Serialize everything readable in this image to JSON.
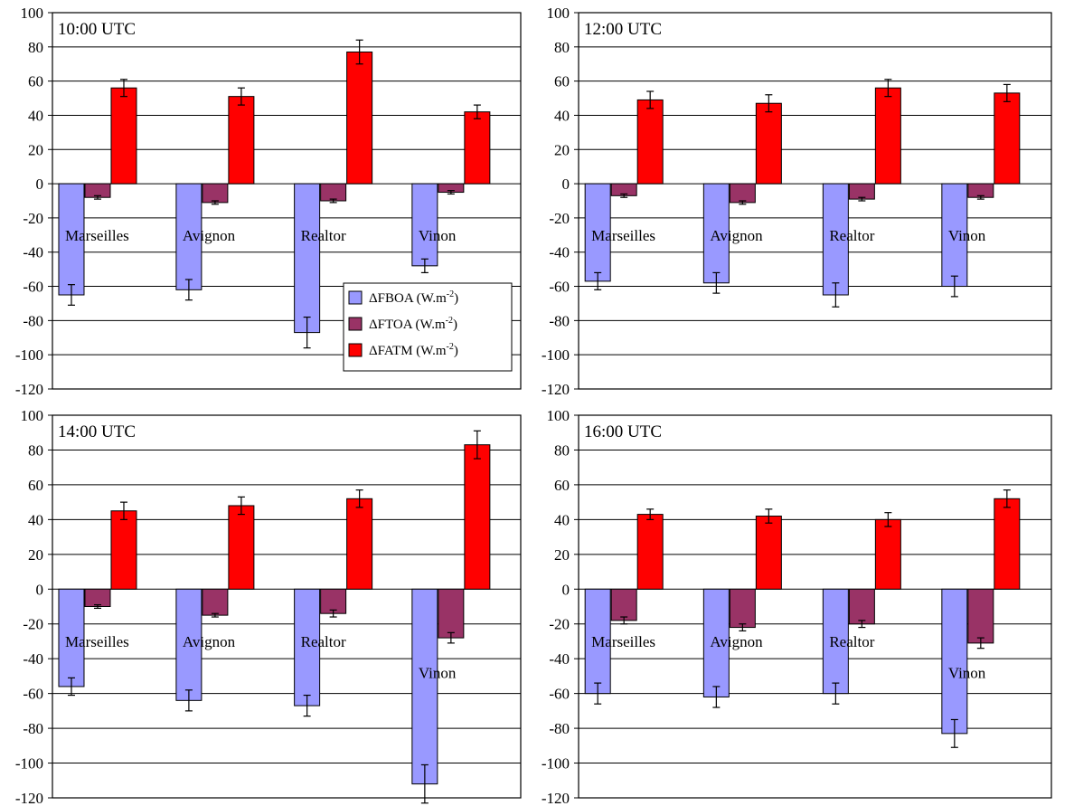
{
  "figure": {
    "legend": [
      {
        "symbol": "ΔFBOA",
        "unit": " (W.m",
        "exp": "-2",
        "close": ")"
      },
      {
        "symbol": "ΔFTOA",
        "unit": " (W.m",
        "exp": "-2",
        "close": ")"
      },
      {
        "symbol": "ΔFATM",
        "unit": " (W.m",
        "exp": "-2",
        "close": ")"
      }
    ]
  },
  "colors": {
    "FBOA": "#9999ff",
    "FTOA": "#993366",
    "FATM": "#ff0000",
    "grid": "#000000",
    "background": "#ffffff"
  },
  "chart_data": [
    {
      "type": "bar",
      "title": "10:00 UTC",
      "categories": [
        "Marseilles",
        "Avignon",
        "Realtor",
        "Vinon"
      ],
      "ylim": [
        -120,
        100
      ],
      "yticks": [
        100,
        80,
        60,
        40,
        20,
        0,
        -20,
        -40,
        -60,
        -80,
        -100,
        -120
      ],
      "grid": true,
      "legend_position": "bottom-right",
      "label_y": [
        -30,
        -30,
        -30,
        -30
      ],
      "series": [
        {
          "name": "ΔFBOA (W.m-2)",
          "values": [
            -65,
            -62,
            -87,
            -48
          ],
          "errors": [
            6,
            6,
            9,
            4
          ]
        },
        {
          "name": "ΔFTOA (W.m-2)",
          "values": [
            -8,
            -11,
            -10,
            -5
          ],
          "errors": [
            1,
            1,
            1,
            1
          ]
        },
        {
          "name": "ΔFATM (W.m-2)",
          "values": [
            56,
            51,
            77,
            42
          ],
          "errors": [
            5,
            5,
            7,
            4
          ]
        }
      ]
    },
    {
      "type": "bar",
      "title": "12:00 UTC",
      "categories": [
        "Marseilles",
        "Avignon",
        "Realtor",
        "Vinon"
      ],
      "ylim": [
        -120,
        100
      ],
      "yticks": [
        100,
        80,
        60,
        40,
        20,
        0,
        -20,
        -40,
        -60,
        -80,
        -100,
        -120
      ],
      "grid": true,
      "label_y": [
        -30,
        -30,
        -30,
        -30
      ],
      "series": [
        {
          "name": "ΔFBOA (W.m-2)",
          "values": [
            -57,
            -58,
            -65,
            -60
          ],
          "errors": [
            5,
            6,
            7,
            6
          ]
        },
        {
          "name": "ΔFTOA (W.m-2)",
          "values": [
            -7,
            -11,
            -9,
            -8
          ],
          "errors": [
            1,
            1,
            1,
            1
          ]
        },
        {
          "name": "ΔFATM (W.m-2)",
          "values": [
            49,
            47,
            56,
            53
          ],
          "errors": [
            5,
            5,
            5,
            5
          ]
        }
      ]
    },
    {
      "type": "bar",
      "title": "14:00 UTC",
      "categories": [
        "Marseilles",
        "Avignon",
        "Realtor",
        "Vinon"
      ],
      "ylim": [
        -120,
        100
      ],
      "yticks": [
        100,
        80,
        60,
        40,
        20,
        0,
        -20,
        -40,
        -60,
        -80,
        -100,
        -120
      ],
      "grid": true,
      "label_y": [
        -30,
        -30,
        -30,
        -48
      ],
      "series": [
        {
          "name": "ΔFBOA (W.m-2)",
          "values": [
            -56,
            -64,
            -67,
            -112
          ],
          "errors": [
            5,
            6,
            6,
            11
          ]
        },
        {
          "name": "ΔFTOA (W.m-2)",
          "values": [
            -10,
            -15,
            -14,
            -28
          ],
          "errors": [
            1,
            1,
            2,
            3
          ]
        },
        {
          "name": "ΔFATM (W.m-2)",
          "values": [
            45,
            48,
            52,
            83
          ],
          "errors": [
            5,
            5,
            5,
            8
          ]
        }
      ]
    },
    {
      "type": "bar",
      "title": "16:00 UTC",
      "categories": [
        "Marseilles",
        "Avignon",
        "Realtor",
        "Vinon"
      ],
      "ylim": [
        -120,
        100
      ],
      "yticks": [
        100,
        80,
        60,
        40,
        20,
        0,
        -20,
        -40,
        -60,
        -80,
        -100,
        -120
      ],
      "grid": true,
      "label_y": [
        -30,
        -30,
        -30,
        -48
      ],
      "series": [
        {
          "name": "ΔFBOA (W.m-2)",
          "values": [
            -60,
            -62,
            -60,
            -83
          ],
          "errors": [
            6,
            6,
            6,
            8
          ]
        },
        {
          "name": "ΔFTOA (W.m-2)",
          "values": [
            -18,
            -22,
            -20,
            -31
          ],
          "errors": [
            2,
            2,
            2,
            3
          ]
        },
        {
          "name": "ΔFATM (W.m-2)",
          "values": [
            43,
            42,
            40,
            52
          ],
          "errors": [
            3,
            4,
            4,
            5
          ]
        }
      ]
    }
  ]
}
